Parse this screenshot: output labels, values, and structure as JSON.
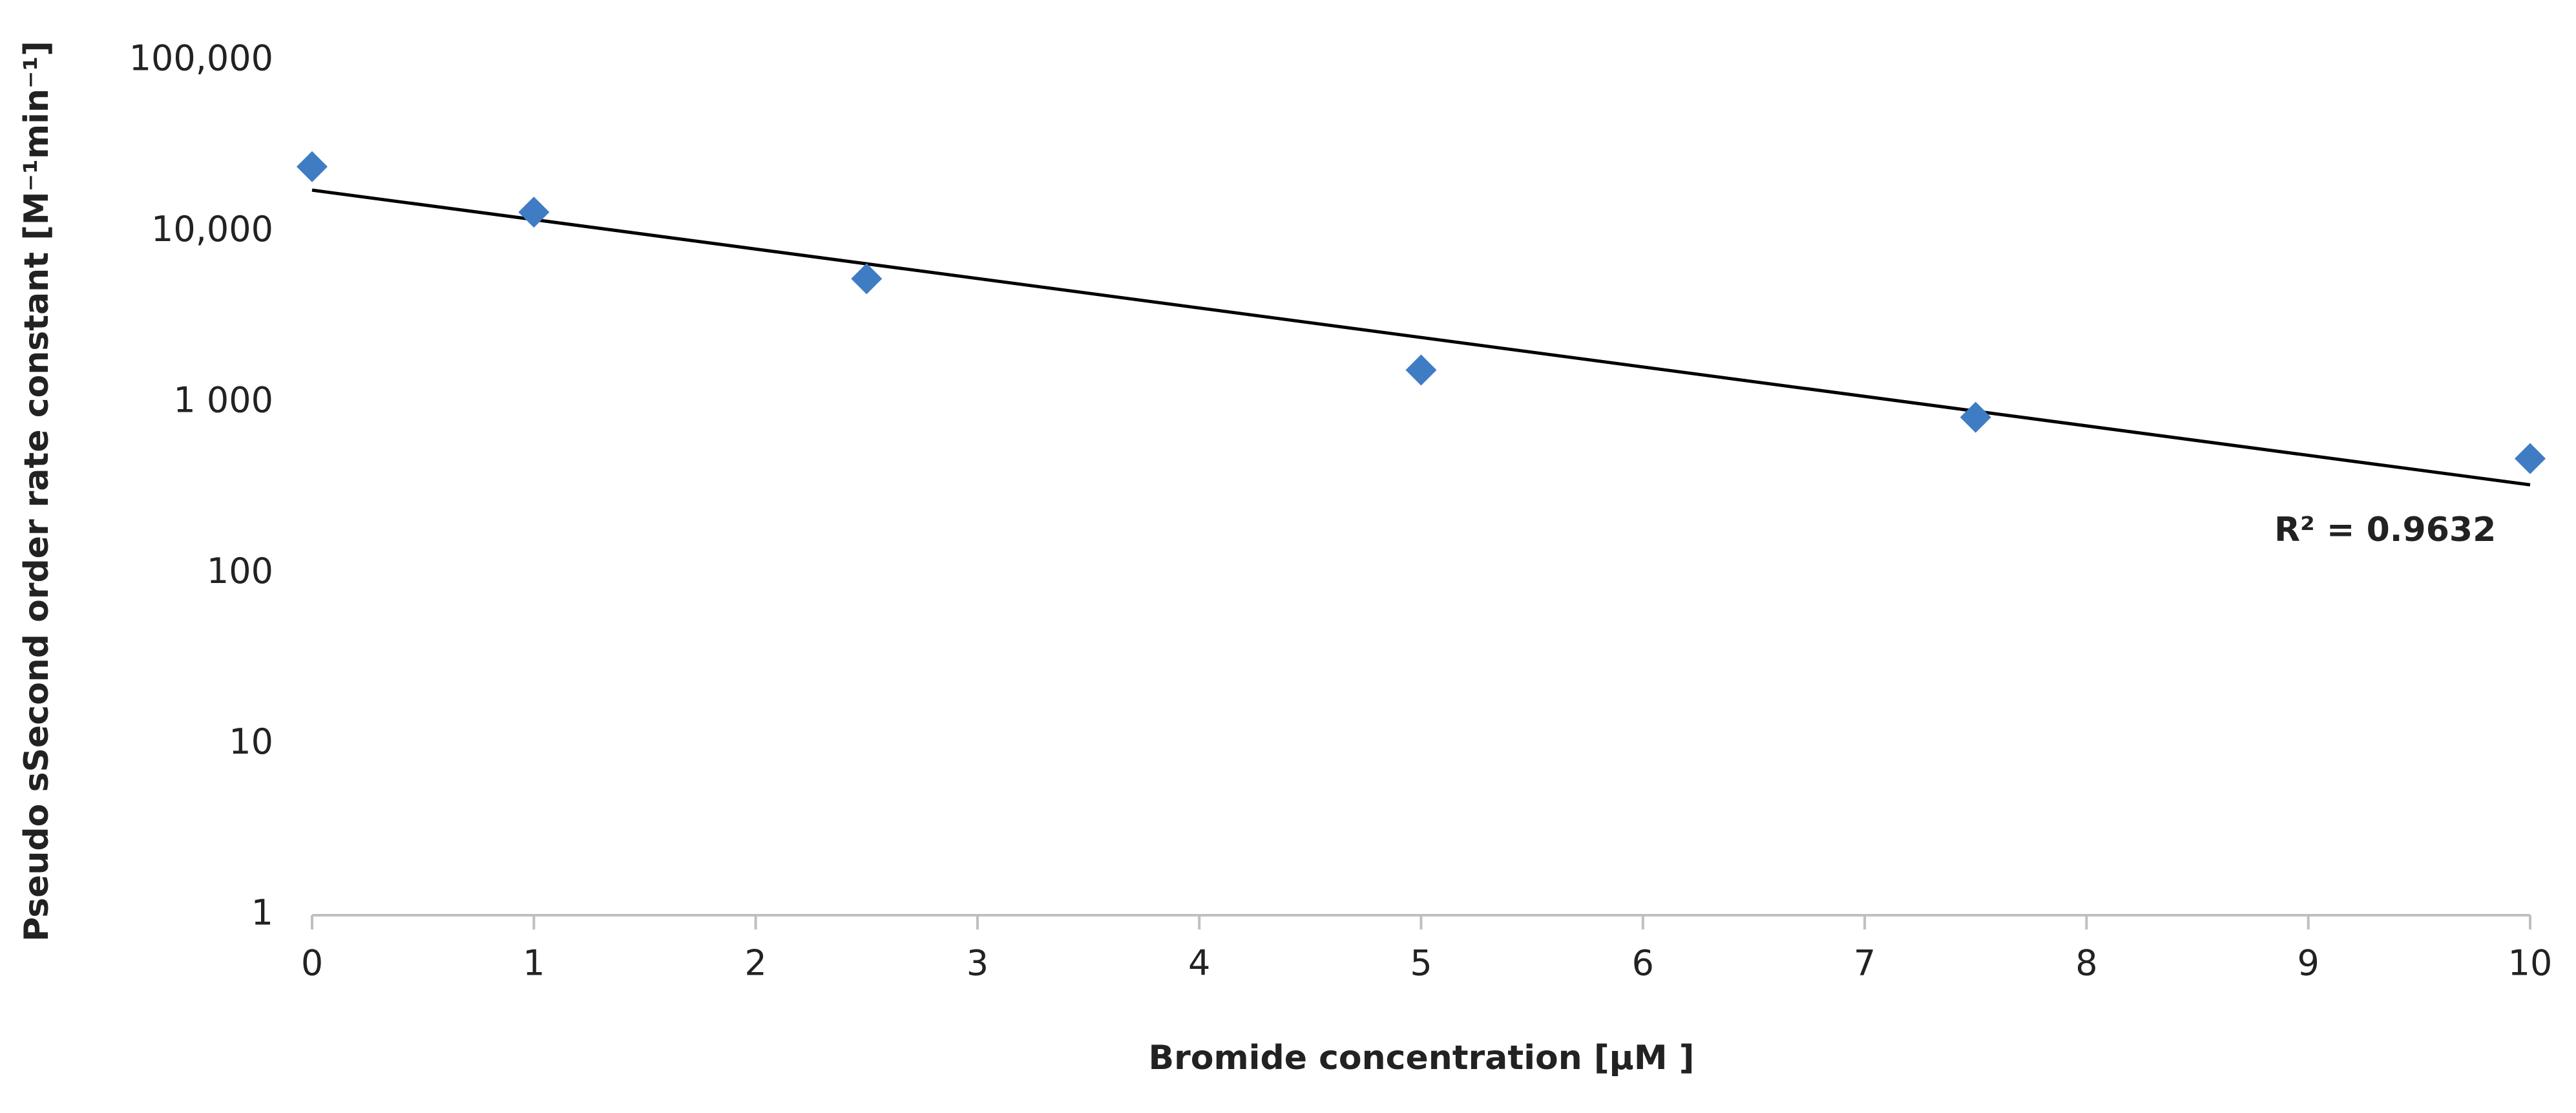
{
  "chart_data": {
    "type": "scatter",
    "xlabel": "Bromide concentration [µM ]",
    "ylabel": "Pseudo sSecond order rate constant [M⁻¹min⁻¹]",
    "annotation": "R² = 0.9632",
    "x": [
      0,
      1,
      2.5,
      5,
      7.5,
      10
    ],
    "series": [
      {
        "color": "#3f7cc4",
        "values": [
          24000,
          13000,
          5300,
          1550,
          820,
          470
        ]
      }
    ],
    "trendline": {
      "color": "#000000",
      "x": [
        0,
        10
      ],
      "values": [
        17500,
        330
      ]
    },
    "xlim": [
      0,
      10
    ],
    "xticks": [
      0,
      1,
      2,
      3,
      4,
      5,
      6,
      7,
      8,
      9,
      10
    ],
    "ylim": [
      1,
      100000
    ],
    "log_y": true,
    "yticks": [
      1,
      10,
      100,
      {
        "value": 1000,
        "label": "1 000"
      },
      {
        "value": 10000,
        "label": "10,000"
      },
      {
        "value": 100000,
        "label": "100,000"
      }
    ]
  }
}
